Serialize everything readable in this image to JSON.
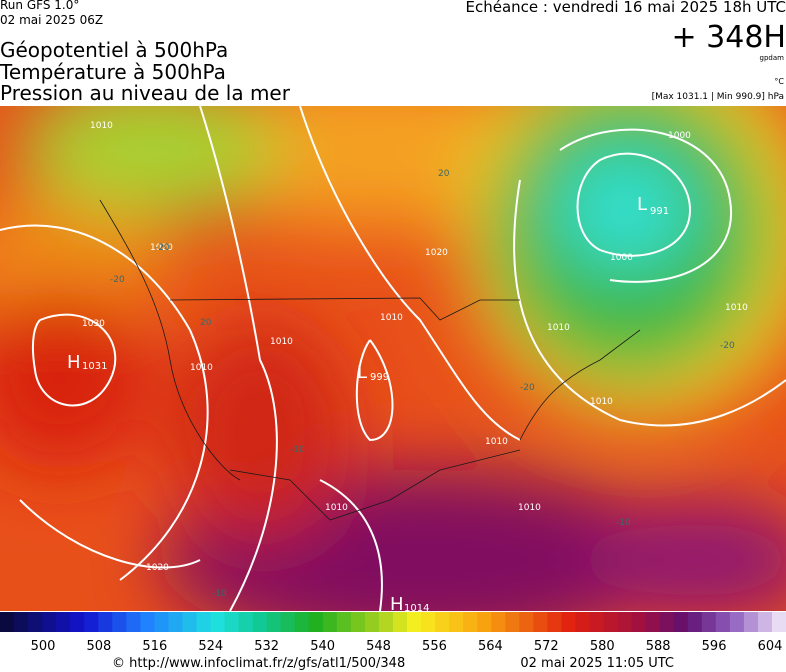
{
  "header": {
    "run": "Run GFS 1.0°",
    "run_time": "02 mai 2025 06Z",
    "titles": [
      "Géopotentiel à 500hPa",
      "Température à 500hPa",
      "Pression au niveau de la mer"
    ],
    "forecast": "Echéance : vendredi 16 mai 2025 18h UTC",
    "lead": "+ 348H",
    "unit_geo": "gpdam",
    "unit_temp": "°C",
    "pressure_range": "[Max 1031.1 | Min 990.9] hPa"
  },
  "map": {
    "centers": [
      {
        "type": "H",
        "value": "1031"
      },
      {
        "type": "L",
        "value": "991"
      },
      {
        "type": "L",
        "value": "999"
      },
      {
        "type": "H",
        "value": "1014"
      }
    ],
    "isobar_labels": [
      "1010",
      "1030",
      "1020",
      "1010",
      "1010",
      "1020",
      "1010",
      "1000",
      "1000",
      "1010",
      "1010",
      "1010",
      "1010",
      "1010",
      "1010",
      "1020"
    ],
    "temperature_labels": [
      "-20",
      "-20",
      "20",
      "20",
      "-20",
      "-10",
      "-10",
      "-10",
      "-20"
    ]
  },
  "colorbar": {
    "ticks": [
      500,
      508,
      516,
      524,
      532,
      540,
      548,
      556,
      564,
      572,
      580,
      588,
      596,
      604
    ]
  },
  "footer": {
    "url": "© http://www.infoclimat.fr/z/gfs/atl1/500/348",
    "timestamp": "02 mai 2025 11:05 UTC"
  }
}
